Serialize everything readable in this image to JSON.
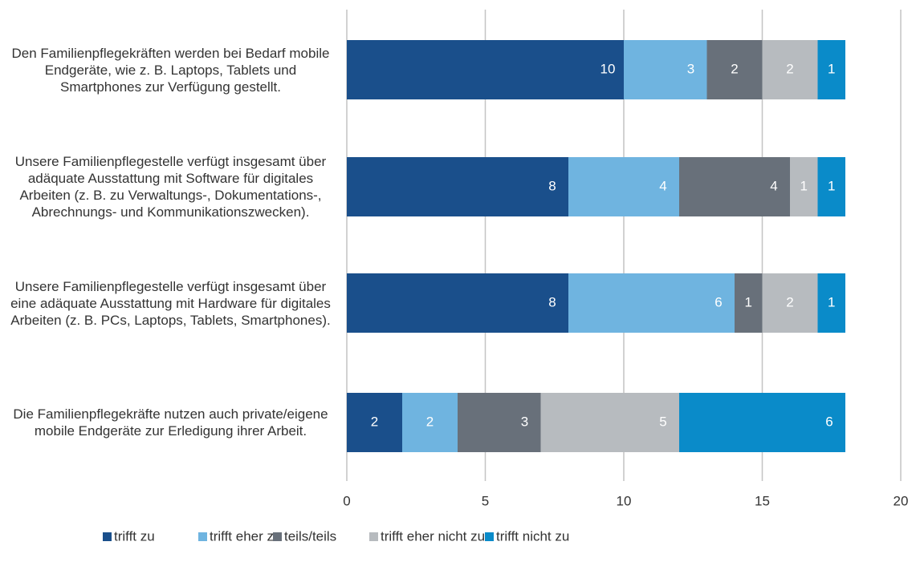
{
  "chart_data": {
    "type": "stacked-bar-horizontal",
    "categories": [
      "Den Familienpflegekräften werden bei Bedarf mobile Endgeräte, wie z. B. Laptops, Tablets und Smartphones zur Verfügung gestellt.",
      "Unsere Familienpflegestelle verfügt insgesamt über adäquate Ausstattung mit Software für digitales Arbeiten (z. B. zu Verwaltungs-, Dokumentations-, Abrechnungs- und Kommunikationszwecken).",
      "Unsere Familienpflegestelle verfügt insgesamt über eine adäquate Ausstattung mit Hardware für digitales Arbeiten (z. B. PCs, Laptops, Tablets, Smartphones).",
      "Die Familienpflegekräfte nutzen auch private/eigene mobile Endgeräte zur Erledigung ihrer Arbeit."
    ],
    "series": [
      {
        "name": "trifft zu",
        "color": "#1a4f8b",
        "values": [
          10,
          8,
          8,
          2
        ]
      },
      {
        "name": "trifft eher zu",
        "color": "#6fb4e0",
        "values": [
          3,
          4,
          6,
          2
        ]
      },
      {
        "name": "teils/teils",
        "color": "#68707a",
        "values": [
          2,
          4,
          1,
          3
        ]
      },
      {
        "name": "trifft eher nicht zu",
        "color": "#b7bbbf",
        "values": [
          2,
          1,
          2,
          5
        ]
      },
      {
        "name": "trifft nicht zu",
        "color": "#0a8bc9",
        "values": [
          1,
          1,
          1,
          6
        ]
      }
    ],
    "xlim": [
      0,
      20
    ],
    "xticks": [
      0,
      5,
      10,
      15,
      20
    ],
    "grid": true,
    "legend": "bottom"
  }
}
